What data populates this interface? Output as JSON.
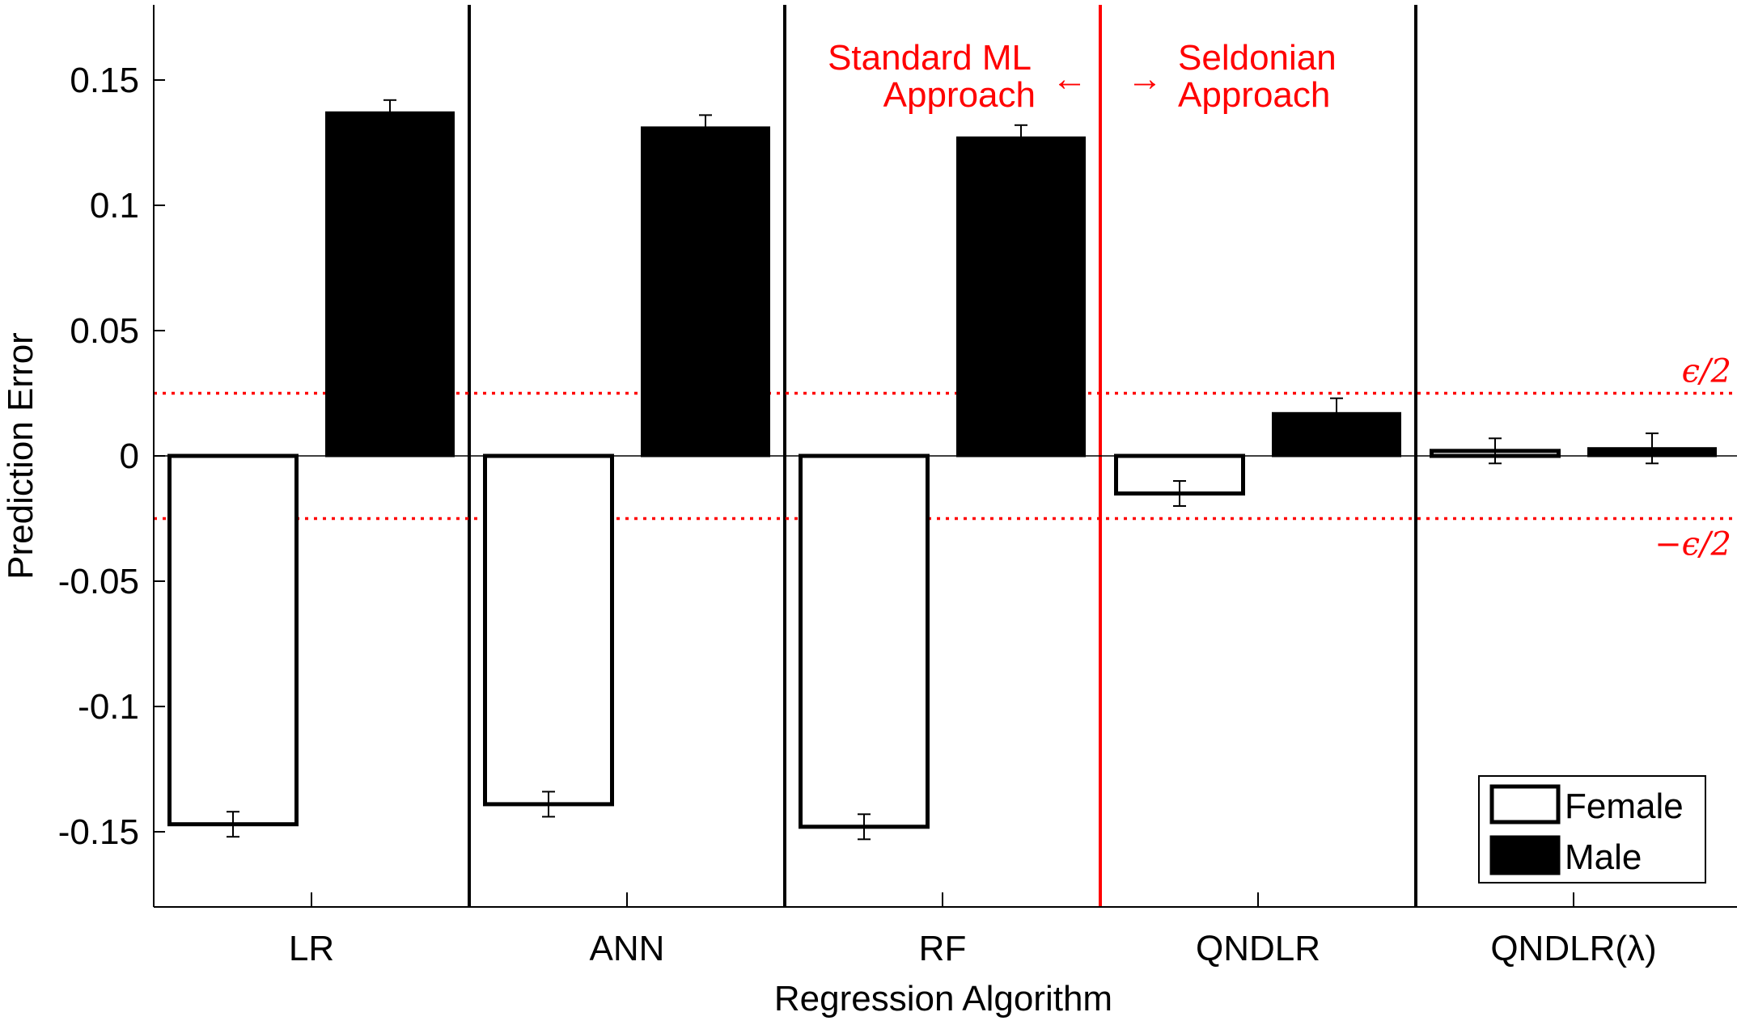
{
  "chart_data": {
    "type": "bar",
    "xlabel": "Regression Algorithm",
    "ylabel": "Prediction Error",
    "ylim": [
      -0.18,
      0.18
    ],
    "yticks": [
      0.15,
      0.1,
      0.05,
      0,
      -0.05,
      -0.1,
      -0.15
    ],
    "ytick_labels": [
      "0.15",
      "0.1",
      "0.05",
      "0",
      "-0.05",
      "-0.1",
      "-0.15"
    ],
    "categories": [
      "LR",
      "ANN",
      "RF",
      "QNDLR",
      "QNDLR(λ)"
    ],
    "series": [
      {
        "name": "Female",
        "values": [
          -0.147,
          -0.139,
          -0.148,
          -0.015,
          0.002
        ],
        "errors": [
          0.005,
          0.005,
          0.005,
          0.005,
          0.005
        ]
      },
      {
        "name": "Male",
        "values": [
          0.137,
          0.131,
          0.127,
          0.017,
          0.003
        ],
        "errors": [
          0.005,
          0.005,
          0.005,
          0.006,
          0.006
        ]
      }
    ],
    "reference_lines": [
      {
        "value": 0.025,
        "label": "ϵ/2"
      },
      {
        "value": -0.025,
        "label": "−ϵ/2"
      }
    ],
    "annotations": {
      "left_line1": "Standard ML",
      "left_line2": "Approach",
      "left_arrow": "←",
      "right_arrow": "→",
      "right_line1": "Seldonian",
      "right_line2": "Approach"
    },
    "legend_position": "bottom-right",
    "colors": {
      "female_fill": "#ffffff",
      "male_fill": "#000000",
      "bar_edge": "#000000",
      "reference": "#ff0000",
      "separator": "#000000",
      "highlight_separator": "#ff0000",
      "annotation": "#ff0000"
    }
  }
}
